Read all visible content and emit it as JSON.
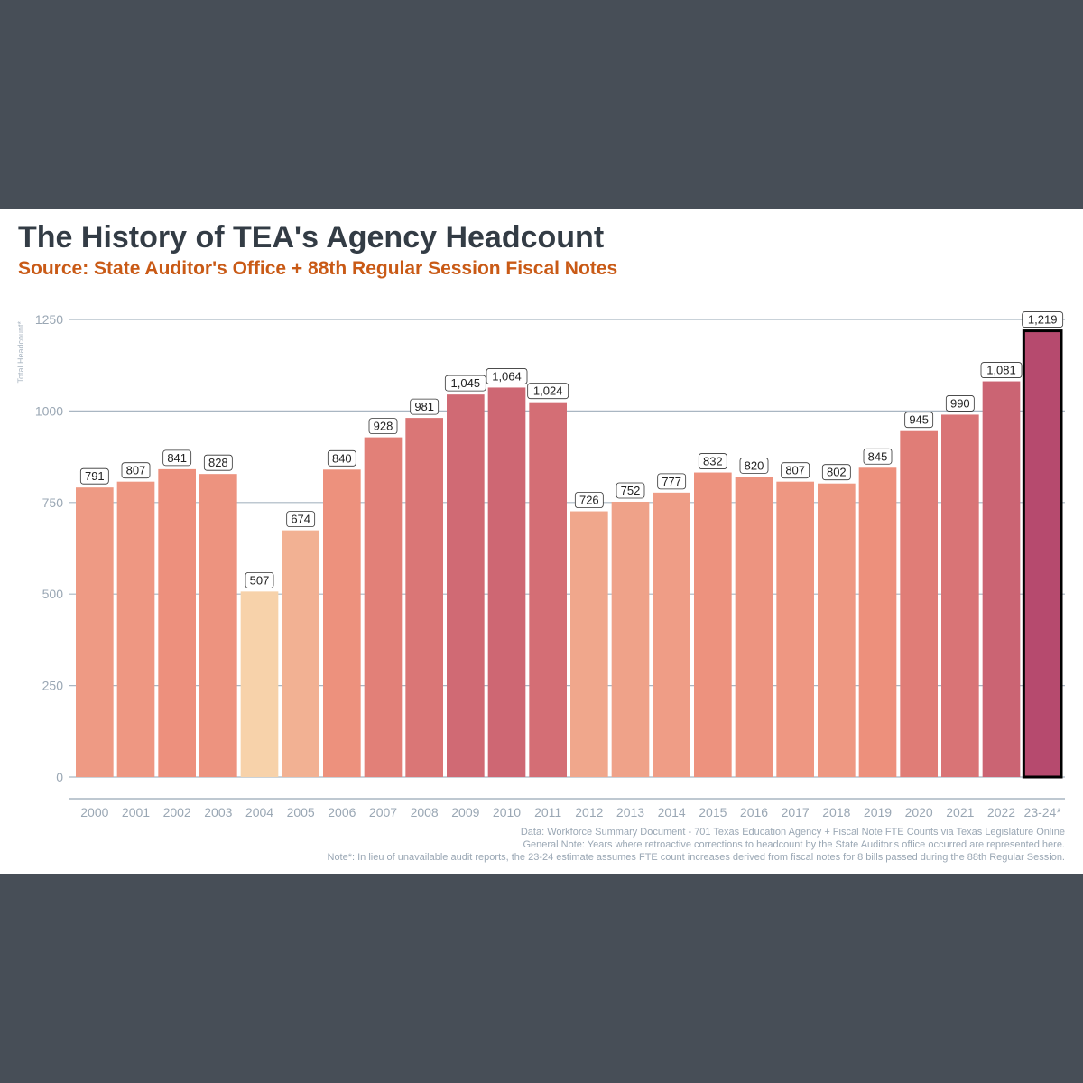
{
  "header": {
    "title": "The History of TEA's Agency Headcount",
    "subtitle": "Source: State Auditor's Office + 88th Regular Session Fiscal Notes"
  },
  "chart_data": {
    "type": "bar",
    "title": "The History of TEA's Agency Headcount",
    "subtitle": "Source: State Auditor's Office + 88th Regular Session Fiscal Notes",
    "xlabel": "",
    "ylabel": "Total Headcount*",
    "ylim": [
      0,
      1250
    ],
    "yticks": [
      0,
      250,
      500,
      750,
      1000,
      1250
    ],
    "grid": true,
    "categories": [
      "2000",
      "2001",
      "2002",
      "2003",
      "2004",
      "2005",
      "2006",
      "2007",
      "2008",
      "2009",
      "2010",
      "2011",
      "2012",
      "2013",
      "2014",
      "2015",
      "2016",
      "2017",
      "2018",
      "2019",
      "2020",
      "2021",
      "2022",
      "23-24*"
    ],
    "values": [
      791,
      807,
      841,
      828,
      507,
      674,
      840,
      928,
      981,
      1045,
      1064,
      1024,
      726,
      752,
      777,
      832,
      820,
      807,
      802,
      845,
      945,
      990,
      1081,
      1219
    ],
    "value_labels": [
      "791",
      "807",
      "841",
      "828",
      "507",
      "674",
      "840",
      "928",
      "981",
      "1,045",
      "1,064",
      "1,024",
      "726",
      "752",
      "777",
      "832",
      "820",
      "807",
      "802",
      "845",
      "945",
      "990",
      "1,081",
      "1,219"
    ],
    "highlighted_category": "23-24*",
    "color_scale": {
      "low": "#f7d2aa",
      "mid": "#ec8c7a",
      "high": "#b64a6e"
    }
  },
  "footnotes": {
    "data": "Data: Workforce Summary Document - 701 Texas Education Agency + Fiscal Note FTE Counts via Texas Legislature Online",
    "general": "General Note: Years where retroactive corrections to headcount by the State Auditor's office occurred are represented here.",
    "note": "Note*: In lieu of unavailable audit reports, the 23-24 estimate assumes FTE count increases derived from fiscal notes for 8 bills passed during the 88th Regular Session."
  }
}
